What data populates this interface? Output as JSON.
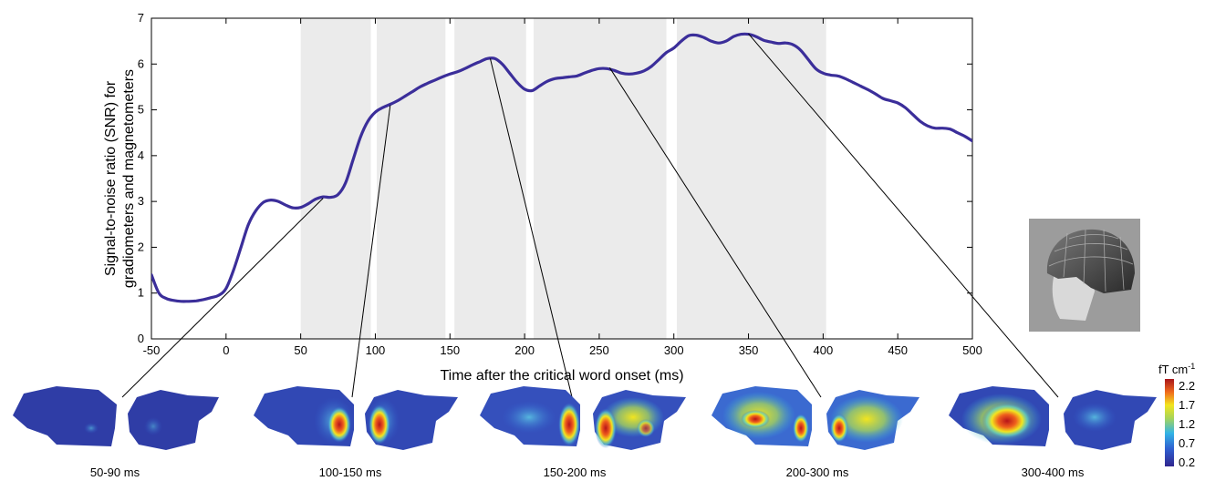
{
  "chart_data": {
    "type": "line",
    "xlabel": "Time after the critical word onset (ms)",
    "ylabel_line1": "Signal-to-noise ratio (SNR) for",
    "ylabel_line2": "gradiometers and magnetometers",
    "xlim": [
      -50,
      500
    ],
    "ylim": [
      0,
      7
    ],
    "xticks": [
      -50,
      0,
      50,
      100,
      150,
      200,
      250,
      300,
      350,
      400,
      450,
      500
    ],
    "yticks": [
      0,
      1,
      2,
      3,
      4,
      5,
      6,
      7
    ],
    "grid": false,
    "shaded_windows": [
      [
        50,
        97
      ],
      [
        101,
        147
      ],
      [
        153,
        201
      ],
      [
        206,
        295
      ],
      [
        302,
        402
      ]
    ],
    "series": [
      {
        "color": "#3b2e9a",
        "x": [
          -50,
          -45,
          -40,
          -35,
          -30,
          -25,
          -20,
          -15,
          -10,
          -5,
          0,
          5,
          10,
          15,
          20,
          25,
          30,
          35,
          40,
          45,
          50,
          55,
          60,
          65,
          70,
          75,
          80,
          85,
          90,
          95,
          100,
          105,
          110,
          115,
          120,
          125,
          130,
          135,
          140,
          145,
          150,
          155,
          160,
          165,
          170,
          175,
          180,
          185,
          190,
          195,
          200,
          205,
          210,
          215,
          220,
          225,
          230,
          235,
          240,
          245,
          250,
          255,
          260,
          265,
          270,
          275,
          280,
          285,
          290,
          295,
          300,
          305,
          310,
          315,
          320,
          325,
          330,
          335,
          340,
          345,
          350,
          355,
          360,
          365,
          370,
          375,
          380,
          385,
          390,
          395,
          400,
          405,
          410,
          415,
          420,
          425,
          430,
          435,
          440,
          445,
          450,
          455,
          460,
          465,
          470,
          475,
          480,
          485,
          490,
          495,
          500
        ],
        "y": [
          1.4,
          1.0,
          0.88,
          0.84,
          0.82,
          0.82,
          0.83,
          0.86,
          0.9,
          0.95,
          1.1,
          1.5,
          2.0,
          2.5,
          2.8,
          2.98,
          3.03,
          3.0,
          2.92,
          2.86,
          2.87,
          2.95,
          3.05,
          3.1,
          3.09,
          3.15,
          3.4,
          3.9,
          4.4,
          4.75,
          4.95,
          5.05,
          5.12,
          5.2,
          5.3,
          5.4,
          5.5,
          5.58,
          5.65,
          5.72,
          5.78,
          5.83,
          5.9,
          5.98,
          6.05,
          6.12,
          6.12,
          6.0,
          5.8,
          5.6,
          5.45,
          5.42,
          5.52,
          5.62,
          5.68,
          5.7,
          5.72,
          5.74,
          5.8,
          5.86,
          5.9,
          5.9,
          5.86,
          5.8,
          5.78,
          5.8,
          5.85,
          5.95,
          6.1,
          6.25,
          6.35,
          6.5,
          6.62,
          6.63,
          6.58,
          6.5,
          6.46,
          6.5,
          6.6,
          6.65,
          6.65,
          6.6,
          6.52,
          6.48,
          6.45,
          6.46,
          6.42,
          6.3,
          6.1,
          5.9,
          5.8,
          5.76,
          5.74,
          5.68,
          5.6,
          5.52,
          5.44,
          5.35,
          5.25,
          5.2,
          5.15,
          5.05,
          4.9,
          4.75,
          4.65,
          4.6,
          4.6,
          4.58,
          4.5,
          4.42,
          4.32
        ]
      }
    ],
    "callouts": [
      {
        "x": 65,
        "y": 3.07,
        "label": "50-90 ms"
      },
      {
        "x": 110,
        "y": 5.1,
        "label": "100-150 ms"
      },
      {
        "x": 177,
        "y": 6.12,
        "label": "150-200 ms"
      },
      {
        "x": 257,
        "y": 5.92,
        "label": "200-300 ms"
      },
      {
        "x": 350,
        "y": 6.66,
        "label": "300-400 ms"
      }
    ]
  },
  "colorbar": {
    "unit": "fT cm",
    "unit_exponent": "-1",
    "ticks": [
      "2.2",
      "1.7",
      "1.2",
      "0.7",
      "0.2"
    ]
  },
  "colors": {
    "line": "#3b2e9a",
    "shade": "#ebebeb",
    "head_bg": "#9c9c9c"
  }
}
